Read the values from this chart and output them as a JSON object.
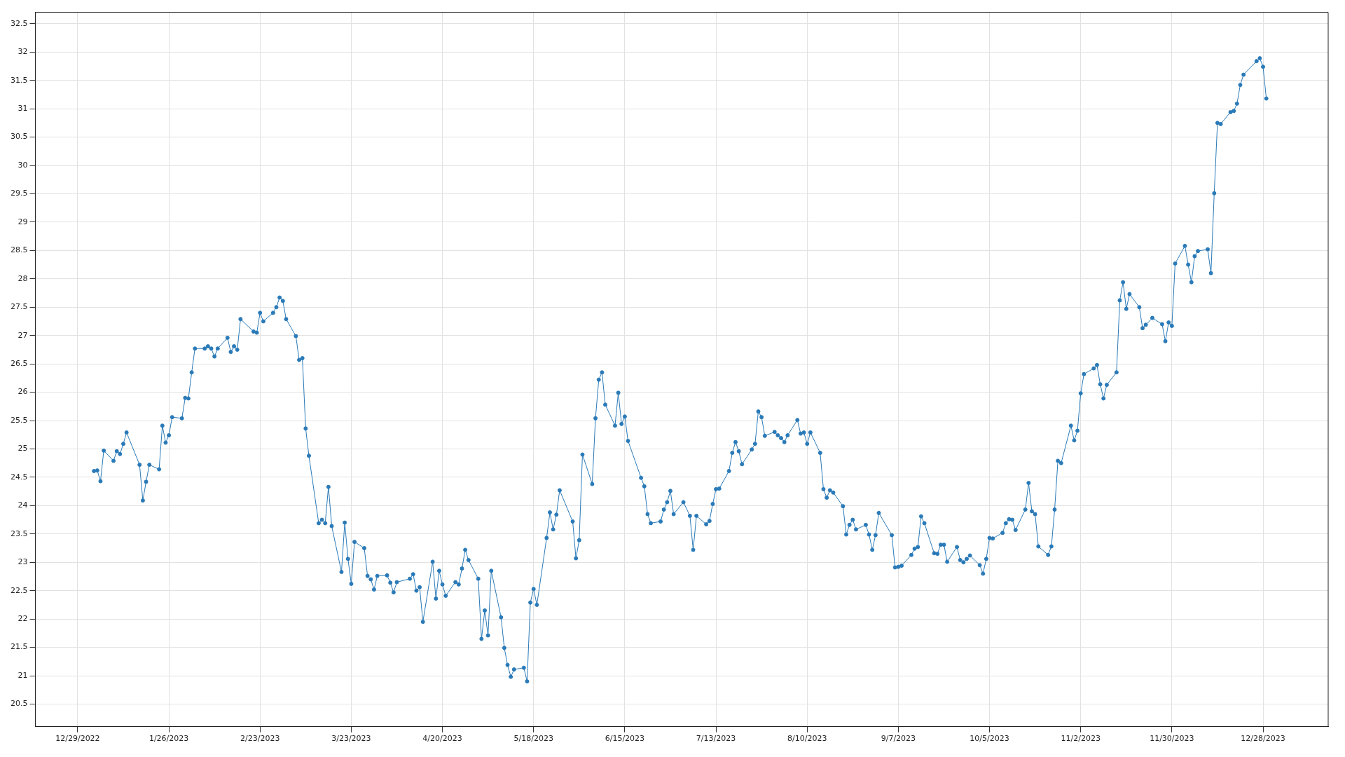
{
  "chart_data": {
    "type": "line",
    "marker": "circle",
    "line_style": "solid",
    "grid": true,
    "legend": false,
    "xlim": [
      "2022-12-16",
      "2024-01-17"
    ],
    "xticks": [
      {
        "value": "2022-12-29",
        "label": "12/29/2022"
      },
      {
        "value": "2023-01-26",
        "label": "1/26/2023"
      },
      {
        "value": "2023-02-23",
        "label": "2/23/2023"
      },
      {
        "value": "2023-03-23",
        "label": "3/23/2023"
      },
      {
        "value": "2023-04-20",
        "label": "4/20/2023"
      },
      {
        "value": "2023-05-18",
        "label": "5/18/2023"
      },
      {
        "value": "2023-06-15",
        "label": "6/15/2023"
      },
      {
        "value": "2023-07-13",
        "label": "7/13/2023"
      },
      {
        "value": "2023-08-10",
        "label": "8/10/2023"
      },
      {
        "value": "2023-09-07",
        "label": "9/7/2023"
      },
      {
        "value": "2023-10-05",
        "label": "10/5/2023"
      },
      {
        "value": "2023-11-02",
        "label": "11/2/2023"
      },
      {
        "value": "2023-11-30",
        "label": "11/30/2023"
      },
      {
        "value": "2023-12-28",
        "label": "12/28/2023"
      }
    ],
    "ylim": [
      20.1,
      32.7
    ],
    "yticks": [
      20.5,
      21,
      21.5,
      22,
      22.5,
      23,
      23.5,
      24,
      24.5,
      25,
      25.5,
      26,
      26.5,
      27,
      27.5,
      28,
      28.5,
      29,
      29.5,
      30,
      30.5,
      31,
      31.5,
      32,
      32.5
    ],
    "series": [
      {
        "color": "#2a7ab8",
        "x": [
          "2023-01-03",
          "2023-01-04",
          "2023-01-05",
          "2023-01-06",
          "2023-01-09",
          "2023-01-10",
          "2023-01-11",
          "2023-01-12",
          "2023-01-13",
          "2023-01-17",
          "2023-01-18",
          "2023-01-19",
          "2023-01-20",
          "2023-01-23",
          "2023-01-24",
          "2023-01-25",
          "2023-01-26",
          "2023-01-27",
          "2023-01-30",
          "2023-01-31",
          "2023-02-01",
          "2023-02-02",
          "2023-02-03",
          "2023-02-06",
          "2023-02-07",
          "2023-02-08",
          "2023-02-09",
          "2023-02-10",
          "2023-02-13",
          "2023-02-14",
          "2023-02-15",
          "2023-02-16",
          "2023-02-17",
          "2023-02-21",
          "2023-02-22",
          "2023-02-23",
          "2023-02-24",
          "2023-02-27",
          "2023-02-28",
          "2023-03-01",
          "2023-03-02",
          "2023-03-03",
          "2023-03-06",
          "2023-03-07",
          "2023-03-08",
          "2023-03-09",
          "2023-03-10",
          "2023-03-13",
          "2023-03-14",
          "2023-03-15",
          "2023-03-16",
          "2023-03-17",
          "2023-03-20",
          "2023-03-21",
          "2023-03-22",
          "2023-03-23",
          "2023-03-24",
          "2023-03-27",
          "2023-03-28",
          "2023-03-29",
          "2023-03-30",
          "2023-03-31",
          "2023-04-03",
          "2023-04-04",
          "2023-04-05",
          "2023-04-06",
          "2023-04-10",
          "2023-04-11",
          "2023-04-12",
          "2023-04-13",
          "2023-04-14",
          "2023-04-17",
          "2023-04-18",
          "2023-04-19",
          "2023-04-20",
          "2023-04-21",
          "2023-04-24",
          "2023-04-25",
          "2023-04-26",
          "2023-04-27",
          "2023-04-28",
          "2023-05-01",
          "2023-05-02",
          "2023-05-03",
          "2023-05-04",
          "2023-05-05",
          "2023-05-08",
          "2023-05-09",
          "2023-05-10",
          "2023-05-11",
          "2023-05-12",
          "2023-05-15",
          "2023-05-16",
          "2023-05-17",
          "2023-05-18",
          "2023-05-19",
          "2023-05-22",
          "2023-05-23",
          "2023-05-24",
          "2023-05-25",
          "2023-05-26",
          "2023-05-30",
          "2023-05-31",
          "2023-06-01",
          "2023-06-02",
          "2023-06-05",
          "2023-06-06",
          "2023-06-07",
          "2023-06-08",
          "2023-06-09",
          "2023-06-12",
          "2023-06-13",
          "2023-06-14",
          "2023-06-15",
          "2023-06-16",
          "2023-06-20",
          "2023-06-21",
          "2023-06-22",
          "2023-06-23",
          "2023-06-26",
          "2023-06-27",
          "2023-06-28",
          "2023-06-29",
          "2023-06-30",
          "2023-07-03",
          "2023-07-05",
          "2023-07-06",
          "2023-07-07",
          "2023-07-10",
          "2023-07-11",
          "2023-07-12",
          "2023-07-13",
          "2023-07-14",
          "2023-07-17",
          "2023-07-18",
          "2023-07-19",
          "2023-07-20",
          "2023-07-21",
          "2023-07-24",
          "2023-07-25",
          "2023-07-26",
          "2023-07-27",
          "2023-07-28",
          "2023-07-31",
          "2023-08-01",
          "2023-08-02",
          "2023-08-03",
          "2023-08-04",
          "2023-08-07",
          "2023-08-08",
          "2023-08-09",
          "2023-08-10",
          "2023-08-11",
          "2023-08-14",
          "2023-08-15",
          "2023-08-16",
          "2023-08-17",
          "2023-08-18",
          "2023-08-21",
          "2023-08-22",
          "2023-08-23",
          "2023-08-24",
          "2023-08-25",
          "2023-08-28",
          "2023-08-29",
          "2023-08-30",
          "2023-08-31",
          "2023-09-01",
          "2023-09-05",
          "2023-09-06",
          "2023-09-07",
          "2023-09-08",
          "2023-09-11",
          "2023-09-12",
          "2023-09-13",
          "2023-09-14",
          "2023-09-15",
          "2023-09-18",
          "2023-09-19",
          "2023-09-20",
          "2023-09-21",
          "2023-09-22",
          "2023-09-25",
          "2023-09-26",
          "2023-09-27",
          "2023-09-28",
          "2023-09-29",
          "2023-10-02",
          "2023-10-03",
          "2023-10-04",
          "2023-10-05",
          "2023-10-06",
          "2023-10-09",
          "2023-10-10",
          "2023-10-11",
          "2023-10-12",
          "2023-10-13",
          "2023-10-16",
          "2023-10-17",
          "2023-10-18",
          "2023-10-19",
          "2023-10-20",
          "2023-10-23",
          "2023-10-24",
          "2023-10-25",
          "2023-10-26",
          "2023-10-27",
          "2023-10-30",
          "2023-10-31",
          "2023-11-01",
          "2023-11-02",
          "2023-11-03",
          "2023-11-06",
          "2023-11-07",
          "2023-11-08",
          "2023-11-09",
          "2023-11-10",
          "2023-11-13",
          "2023-11-14",
          "2023-11-15",
          "2023-11-16",
          "2023-11-17",
          "2023-11-20",
          "2023-11-21",
          "2023-11-22",
          "2023-11-24",
          "2023-11-27",
          "2023-11-28",
          "2023-11-29",
          "2023-11-30",
          "2023-12-01",
          "2023-12-04",
          "2023-12-05",
          "2023-12-06",
          "2023-12-07",
          "2023-12-08",
          "2023-12-11",
          "2023-12-12",
          "2023-12-13",
          "2023-12-14",
          "2023-12-15",
          "2023-12-18",
          "2023-12-19",
          "2023-12-20",
          "2023-12-21",
          "2023-12-22",
          "2023-12-26",
          "2023-12-27",
          "2023-12-28",
          "2023-12-29"
        ],
        "values": [
          24.61,
          24.62,
          24.43,
          24.97,
          24.79,
          24.96,
          24.91,
          25.09,
          25.29,
          24.72,
          24.09,
          24.42,
          24.72,
          24.64,
          25.41,
          25.11,
          25.24,
          25.56,
          25.54,
          25.9,
          25.89,
          26.35,
          26.77,
          26.77,
          26.81,
          26.77,
          26.63,
          26.77,
          26.96,
          26.71,
          26.81,
          26.75,
          27.29,
          27.07,
          27.05,
          27.4,
          27.25,
          27.4,
          27.5,
          27.67,
          27.61,
          27.29,
          26.99,
          26.57,
          26.6,
          25.36,
          24.88,
          23.69,
          23.75,
          23.69,
          24.33,
          23.64,
          22.83,
          23.7,
          23.06,
          22.62,
          23.36,
          23.25,
          22.76,
          22.7,
          22.52,
          22.76,
          22.77,
          22.64,
          22.47,
          22.65,
          22.71,
          22.79,
          22.5,
          22.56,
          21.95,
          23.01,
          22.36,
          22.85,
          22.61,
          22.41,
          22.65,
          22.61,
          22.89,
          23.22,
          23.04,
          22.71,
          21.65,
          22.15,
          21.71,
          22.85,
          22.03,
          21.49,
          21.19,
          20.98,
          21.11,
          21.14,
          20.9,
          22.29,
          22.53,
          22.25,
          23.43,
          23.88,
          23.58,
          23.84,
          24.27,
          23.72,
          23.07,
          23.39,
          24.9,
          24.38,
          25.54,
          26.22,
          26.35,
          25.78,
          25.41,
          25.99,
          25.44,
          25.57,
          25.14,
          24.49,
          24.34,
          23.85,
          23.69,
          23.72,
          23.93,
          24.06,
          24.26,
          23.85,
          24.06,
          23.82,
          23.22,
          23.82,
          23.67,
          23.73,
          24.03,
          24.29,
          24.3,
          24.61,
          24.93,
          25.12,
          24.96,
          24.73,
          24.99,
          25.09,
          25.66,
          25.56,
          25.23,
          25.3,
          25.24,
          25.19,
          25.12,
          25.24,
          25.51,
          25.27,
          25.29,
          25.09,
          25.29,
          24.93,
          24.29,
          24.14,
          24.27,
          24.23,
          23.99,
          23.49,
          23.66,
          23.75,
          23.58,
          23.66,
          23.49,
          23.22,
          23.48,
          23.87,
          23.48,
          22.91,
          22.92,
          22.94,
          23.13,
          23.24,
          23.27,
          23.81,
          23.69,
          23.16,
          23.15,
          23.31,
          23.31,
          23.01,
          23.27,
          23.04,
          23,
          23.06,
          23.12,
          22.95,
          22.8,
          23.06,
          23.43,
          23.42,
          23.52,
          23.69,
          23.76,
          23.75,
          23.57,
          23.93,
          24.4,
          23.9,
          23.85,
          23.28,
          23.13,
          23.28,
          23.93,
          24.79,
          24.75,
          25.41,
          25.15,
          25.32,
          25.98,
          26.32,
          26.42,
          26.48,
          26.14,
          25.89,
          26.13,
          26.35,
          27.62,
          27.94,
          27.47,
          27.73,
          27.5,
          27.13,
          27.19,
          27.31,
          27.2,
          26.9,
          27.23,
          27.17,
          28.27,
          28.58,
          28.25,
          27.94,
          28.4,
          28.49,
          28.52,
          28.1,
          29.51,
          30.75,
          30.73,
          30.94,
          30.96,
          31.09,
          31.42,
          31.6,
          31.84,
          31.89,
          31.74,
          31.18
        ]
      }
    ]
  }
}
